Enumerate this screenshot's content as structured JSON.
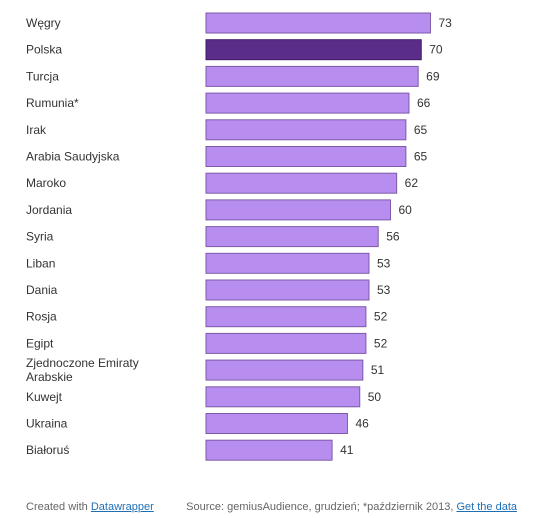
{
  "chart_data": {
    "type": "bar",
    "orientation": "horizontal",
    "categories": [
      "Węgry",
      "Polska",
      "Turcja",
      "Rumunia*",
      "Irak",
      "Arabia Saudyjska",
      "Maroko",
      "Jordania",
      "Syria",
      "Liban",
      "Dania",
      "Rosja",
      "Egipt",
      "Zjednoczone Emiraty Arabskie",
      "Kuwejt",
      "Ukraina",
      "Białoruś"
    ],
    "values": [
      73,
      70,
      69,
      66,
      65,
      65,
      62,
      60,
      56,
      53,
      53,
      52,
      52,
      51,
      50,
      46,
      41
    ],
    "highlight": "Polska",
    "colors": {
      "bar": "#b78ef0",
      "highlight": "#5b2d8b",
      "bar_border": "#7d5aa8"
    },
    "show_value_labels": true,
    "grid": false
  },
  "footer": {
    "created_with": "Created with",
    "created_with_link": "Datawrapper",
    "source": "Source: gemiusAudience, grudzień; *październik 2013,",
    "data_link": "Get the data"
  }
}
